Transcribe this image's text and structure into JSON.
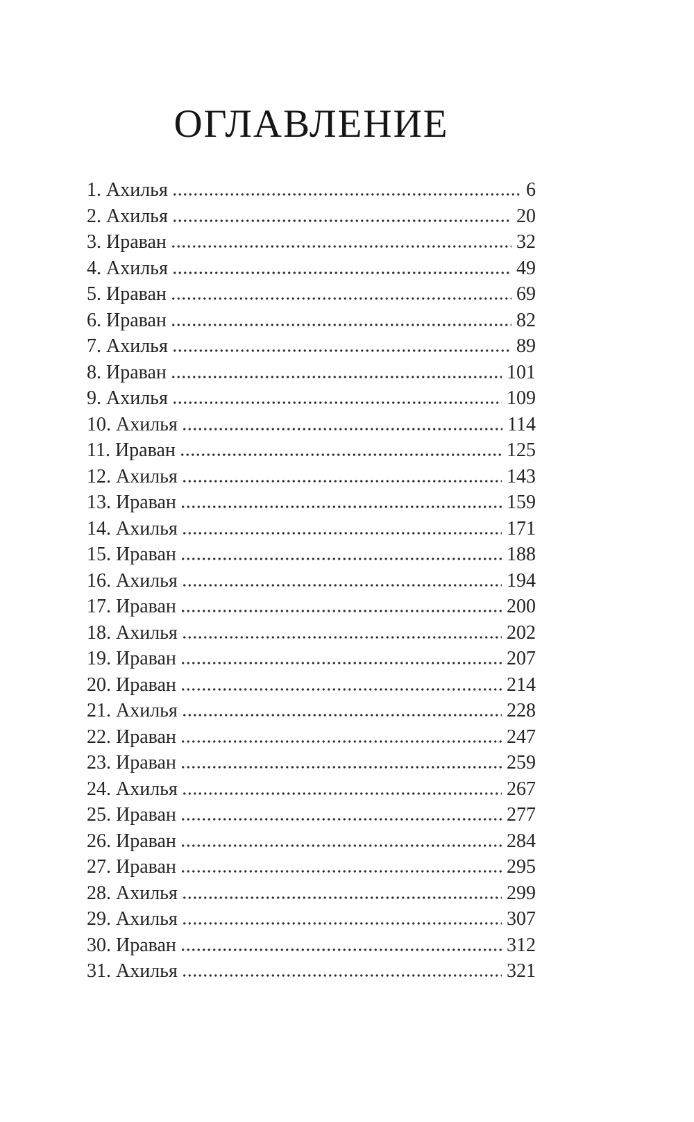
{
  "page": {
    "title": "ОГЛАВЛЕНИЕ"
  },
  "toc": {
    "entries": [
      {
        "label": "1. Ахилья",
        "page": "6"
      },
      {
        "label": "2. Ахилья",
        "page": "20"
      },
      {
        "label": "3. Ираван",
        "page": "32"
      },
      {
        "label": "4. Ахилья",
        "page": "49"
      },
      {
        "label": "5. Ираван",
        "page": "69"
      },
      {
        "label": "6. Ираван",
        "page": "82"
      },
      {
        "label": "7. Ахилья",
        "page": "89"
      },
      {
        "label": "8. Ираван",
        "page": "101"
      },
      {
        "label": "9. Ахилья",
        "page": "109"
      },
      {
        "label": "10. Ахилья",
        "page": "114"
      },
      {
        "label": "11. Ираван",
        "page": "125"
      },
      {
        "label": "12. Ахилья",
        "page": "143"
      },
      {
        "label": "13. Ираван",
        "page": "159"
      },
      {
        "label": "14. Ахилья",
        "page": "171"
      },
      {
        "label": "15. Ираван",
        "page": "188"
      },
      {
        "label": "16. Ахилья",
        "page": "194"
      },
      {
        "label": "17. Ираван",
        "page": "200"
      },
      {
        "label": "18. Ахилья",
        "page": "202"
      },
      {
        "label": "19. Ираван",
        "page": "207"
      },
      {
        "label": "20. Ираван",
        "page": "214"
      },
      {
        "label": "21. Ахилья",
        "page": "228"
      },
      {
        "label": "22. Ираван",
        "page": "247"
      },
      {
        "label": "23. Ираван",
        "page": "259"
      },
      {
        "label": "24. Ахилья",
        "page": "267"
      },
      {
        "label": "25. Ираван",
        "page": "277"
      },
      {
        "label": "26. Ираван",
        "page": "284"
      },
      {
        "label": "27. Ираван",
        "page": "295"
      },
      {
        "label": "28. Ахилья",
        "page": "299"
      },
      {
        "label": "29. Ахилья",
        "page": "307"
      },
      {
        "label": "30. Ираван",
        "page": "312"
      },
      {
        "label": "31. Ахилья",
        "page": "321"
      }
    ]
  }
}
